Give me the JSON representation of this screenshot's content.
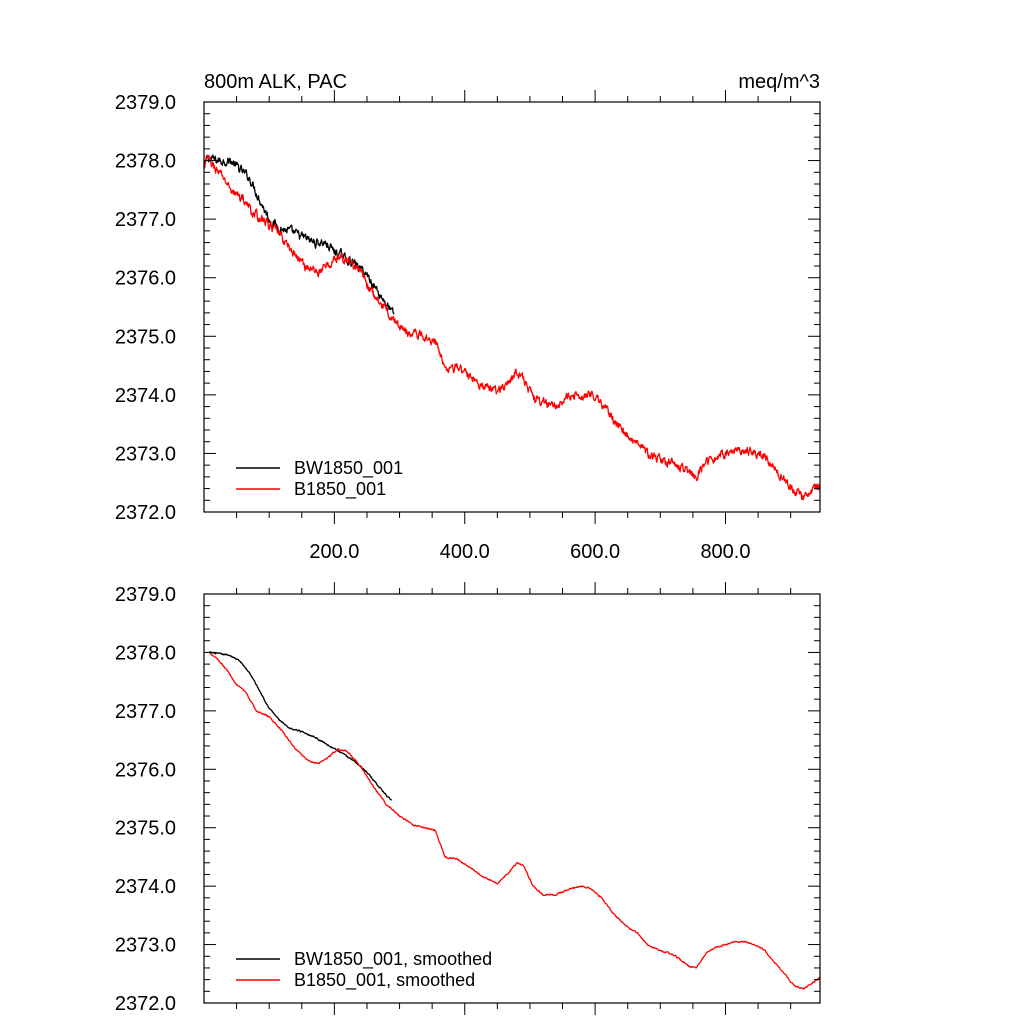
{
  "title_left": "800m ALK, PAC",
  "title_right": "meq/m^3",
  "colors": {
    "bw": "#000000",
    "b": "#ff0000",
    "axis": "#000000"
  },
  "chart_data": [
    {
      "type": "line",
      "panel": "top",
      "title": "800m ALK, PAC",
      "units": "meq/m^3",
      "xlim": [
        0,
        945
      ],
      "ylim": [
        2372.0,
        2379.0
      ],
      "x_ticks": [
        200,
        400,
        600,
        800
      ],
      "x_tick_labels": [
        "200.0",
        "400.0",
        "600.0",
        "800.0"
      ],
      "y_ticks": [
        2372,
        2373,
        2374,
        2375,
        2376,
        2377,
        2378,
        2379
      ],
      "y_tick_labels": [
        "2372.0",
        "2373.0",
        "2374.0",
        "2375.0",
        "2376.0",
        "2377.0",
        "2378.0",
        "2379.0"
      ],
      "legend_position": "bottom-left",
      "series": [
        {
          "name": "BW1850_001",
          "color": "#000000",
          "noise": 0.12,
          "points": [
            [
              1,
              2377.9
            ],
            [
              5,
              2378.05
            ],
            [
              20,
              2378.0
            ],
            [
              40,
              2378.0
            ],
            [
              55,
              2377.85
            ],
            [
              70,
              2377.7
            ],
            [
              85,
              2377.35
            ],
            [
              100,
              2377.0
            ],
            [
              115,
              2376.85
            ],
            [
              130,
              2376.8
            ],
            [
              150,
              2376.7
            ],
            [
              170,
              2376.6
            ],
            [
              185,
              2376.6
            ],
            [
              200,
              2376.45
            ],
            [
              215,
              2376.35
            ],
            [
              230,
              2376.25
            ],
            [
              250,
              2376.05
            ],
            [
              265,
              2375.8
            ],
            [
              280,
              2375.55
            ],
            [
              292,
              2375.35
            ]
          ]
        },
        {
          "name": "B1850_001",
          "color": "#ff0000",
          "noise": 0.12,
          "points": [
            [
              1,
              2377.85
            ],
            [
              5,
              2378.05
            ],
            [
              15,
              2377.9
            ],
            [
              30,
              2377.7
            ],
            [
              45,
              2377.45
            ],
            [
              60,
              2377.35
            ],
            [
              75,
              2377.1
            ],
            [
              95,
              2376.95
            ],
            [
              115,
              2376.75
            ],
            [
              135,
              2376.45
            ],
            [
              155,
              2376.2
            ],
            [
              175,
              2376.1
            ],
            [
              190,
              2376.2
            ],
            [
              205,
              2376.35
            ],
            [
              220,
              2376.3
            ],
            [
              240,
              2376.1
            ],
            [
              260,
              2375.7
            ],
            [
              280,
              2375.45
            ],
            [
              300,
              2375.15
            ],
            [
              320,
              2375.05
            ],
            [
              340,
              2375.0
            ],
            [
              355,
              2374.9
            ],
            [
              370,
              2374.5
            ],
            [
              390,
              2374.45
            ],
            [
              410,
              2374.3
            ],
            [
              430,
              2374.15
            ],
            [
              450,
              2374.05
            ],
            [
              465,
              2374.2
            ],
            [
              480,
              2374.4
            ],
            [
              490,
              2374.3
            ],
            [
              505,
              2373.95
            ],
            [
              520,
              2373.85
            ],
            [
              540,
              2373.85
            ],
            [
              560,
              2373.95
            ],
            [
              580,
              2374.0
            ],
            [
              595,
              2374.0
            ],
            [
              610,
              2373.85
            ],
            [
              630,
              2373.55
            ],
            [
              650,
              2373.3
            ],
            [
              665,
              2373.15
            ],
            [
              680,
              2373.0
            ],
            [
              700,
              2372.9
            ],
            [
              715,
              2372.85
            ],
            [
              730,
              2372.75
            ],
            [
              745,
              2372.65
            ],
            [
              755,
              2372.6
            ],
            [
              770,
              2372.85
            ],
            [
              785,
              2372.95
            ],
            [
              800,
              2373.0
            ],
            [
              815,
              2373.05
            ],
            [
              830,
              2373.05
            ],
            [
              845,
              2373.0
            ],
            [
              860,
              2372.95
            ],
            [
              875,
              2372.75
            ],
            [
              890,
              2372.55
            ],
            [
              905,
              2372.35
            ],
            [
              920,
              2372.25
            ],
            [
              930,
              2372.35
            ],
            [
              945,
              2372.45
            ]
          ]
        }
      ]
    },
    {
      "type": "line",
      "panel": "bottom",
      "xlim": [
        0,
        945
      ],
      "ylim": [
        2372.0,
        2379.0
      ],
      "x_ticks": [
        200,
        400,
        600,
        800
      ],
      "y_ticks": [
        2372,
        2373,
        2374,
        2375,
        2376,
        2377,
        2378,
        2379
      ],
      "y_tick_labels": [
        "2372.0",
        "2373.0",
        "2374.0",
        "2375.0",
        "2376.0",
        "2377.0",
        "2378.0",
        "2379.0"
      ],
      "legend_position": "bottom-left",
      "series": [
        {
          "name": "BW1850_001, smoothed",
          "color": "#000000",
          "noise": 0.02,
          "points": [
            [
              8,
              2378.0
            ],
            [
              20,
              2377.98
            ],
            [
              40,
              2377.95
            ],
            [
              55,
              2377.85
            ],
            [
              70,
              2377.65
            ],
            [
              85,
              2377.35
            ],
            [
              100,
              2377.05
            ],
            [
              115,
              2376.85
            ],
            [
              130,
              2376.7
            ],
            [
              150,
              2376.65
            ],
            [
              170,
              2376.55
            ],
            [
              185,
              2376.45
            ],
            [
              200,
              2376.35
            ],
            [
              215,
              2376.25
            ],
            [
              230,
              2376.15
            ],
            [
              250,
              2375.95
            ],
            [
              265,
              2375.75
            ],
            [
              280,
              2375.55
            ],
            [
              288,
              2375.45
            ]
          ]
        },
        {
          "name": "B1850_001, smoothed",
          "color": "#ff0000",
          "noise": 0.02,
          "points": [
            [
              8,
              2378.0
            ],
            [
              20,
              2377.9
            ],
            [
              35,
              2377.7
            ],
            [
              50,
              2377.45
            ],
            [
              65,
              2377.3
            ],
            [
              80,
              2377.0
            ],
            [
              100,
              2376.9
            ],
            [
              120,
              2376.65
            ],
            [
              140,
              2376.35
            ],
            [
              160,
              2376.15
            ],
            [
              175,
              2376.1
            ],
            [
              190,
              2376.2
            ],
            [
              205,
              2376.35
            ],
            [
              220,
              2376.3
            ],
            [
              240,
              2376.05
            ],
            [
              260,
              2375.7
            ],
            [
              280,
              2375.4
            ],
            [
              300,
              2375.2
            ],
            [
              320,
              2375.05
            ],
            [
              340,
              2375.0
            ],
            [
              355,
              2374.95
            ],
            [
              370,
              2374.5
            ],
            [
              390,
              2374.45
            ],
            [
              410,
              2374.3
            ],
            [
              430,
              2374.15
            ],
            [
              450,
              2374.05
            ],
            [
              465,
              2374.2
            ],
            [
              480,
              2374.4
            ],
            [
              490,
              2374.35
            ],
            [
              505,
              2374.0
            ],
            [
              520,
              2373.85
            ],
            [
              540,
              2373.85
            ],
            [
              560,
              2373.95
            ],
            [
              580,
              2374.0
            ],
            [
              595,
              2373.95
            ],
            [
              610,
              2373.8
            ],
            [
              630,
              2373.5
            ],
            [
              650,
              2373.3
            ],
            [
              665,
              2373.2
            ],
            [
              680,
              2373.0
            ],
            [
              700,
              2372.9
            ],
            [
              715,
              2372.85
            ],
            [
              730,
              2372.75
            ],
            [
              745,
              2372.62
            ],
            [
              755,
              2372.6
            ],
            [
              770,
              2372.85
            ],
            [
              785,
              2372.95
            ],
            [
              800,
              2373.0
            ],
            [
              815,
              2373.05
            ],
            [
              830,
              2373.05
            ],
            [
              845,
              2373.0
            ],
            [
              860,
              2372.9
            ],
            [
              875,
              2372.7
            ],
            [
              890,
              2372.5
            ],
            [
              905,
              2372.3
            ],
            [
              920,
              2372.25
            ],
            [
              935,
              2372.35
            ],
            [
              945,
              2372.45
            ]
          ]
        }
      ]
    }
  ]
}
